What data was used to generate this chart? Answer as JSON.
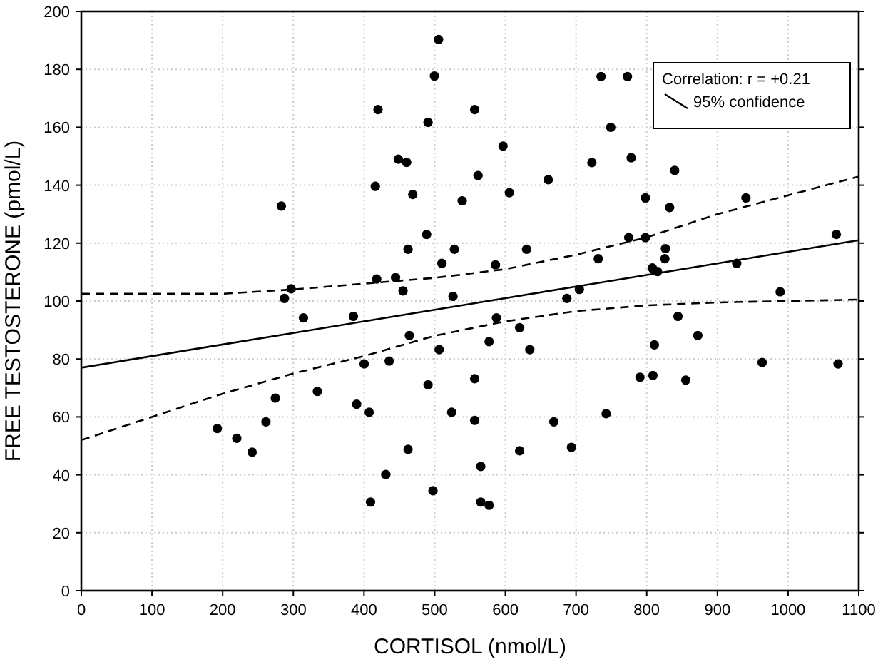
{
  "chart_data": {
    "type": "scatter",
    "xlabel": "CORTISOL (nmol/L)",
    "ylabel": "FREE TESTOSTERONE (pmol/L)",
    "legend_title": "Correlation: r = +0.21",
    "xlim": [
      0,
      1100
    ],
    "ylim": [
      0,
      200
    ],
    "xticks": [
      0,
      100,
      200,
      300,
      400,
      500,
      600,
      700,
      800,
      900,
      1000,
      1100
    ],
    "yticks": [
      0,
      20,
      40,
      60,
      80,
      100,
      120,
      140,
      160,
      180,
      200
    ],
    "grid": true,
    "legend": "top right",
    "marker": "circle",
    "series": [
      {
        "color": "#000000",
        "x": [
          192.5,
          220,
          241.7,
          261.3,
          274.5,
          283,
          287.4,
          297,
          314.3,
          334,
          385,
          389.6,
          400.2,
          407.3,
          409.2,
          416,
          417.9,
          419.8,
          430.8,
          435.6,
          444.6,
          448.5,
          455.2,
          460.3,
          462.3,
          462.3,
          464.2,
          469,
          488.6,
          490.6,
          490.6,
          497.6,
          499.6,
          505.5,
          506.3,
          510.2,
          524,
          525.9,
          527.9,
          538.9,
          556.6,
          556.6,
          556.6,
          561.3,
          565.2,
          565.2,
          577,
          577,
          586,
          587.4,
          596.7,
          605.7,
          620.2,
          620.2,
          630,
          634.6,
          660.7,
          668.6,
          687,
          693.5,
          704.7,
          722.4,
          731.4,
          735.4,
          742.6,
          749.1,
          772.7,
          774.6,
          778,
          790.4,
          798.2,
          798.2,
          808,
          808.8,
          810.8,
          815.3,
          825.7,
          826.5,
          832.4,
          839.5,
          844.2,
          855.2,
          872.3,
          927.3,
          940.4,
          963.3,
          988.8,
          1068.2,
          1070.7
        ],
        "values": [
          56,
          52.6,
          47.8,
          58.3,
          66.5,
          132.8,
          100.9,
          104.2,
          94.2,
          68.8,
          94.7,
          64.4,
          78.3,
          61.6,
          30.6,
          139.6,
          107.6,
          166.1,
          40.1,
          79.3,
          108.1,
          149,
          103.5,
          147.9,
          117.9,
          48.8,
          88.1,
          136.8,
          123,
          161.7,
          71.1,
          34.5,
          177.7,
          190.3,
          83.2,
          113,
          61.6,
          101.6,
          117.9,
          134.6,
          166.1,
          73.2,
          58.8,
          143.3,
          42.9,
          30.6,
          86,
          29.5,
          112.5,
          94.2,
          153.5,
          137.4,
          90.8,
          48.3,
          117.9,
          83.2,
          141.9,
          58.3,
          100.9,
          49.5,
          104,
          147.8,
          114.6,
          177.5,
          61.1,
          160,
          177.5,
          121.9,
          149.5,
          73.7,
          135.6,
          121.9,
          111.4,
          74.3,
          84.9,
          110.2,
          114.6,
          118.1,
          132.3,
          145.1,
          94.7,
          72.7,
          88.1,
          113,
          135.6,
          78.8,
          103.2,
          123,
          78.3
        ]
      },
      {
        "type": "line",
        "name": "95% confidence",
        "color": "#000000",
        "line_style": "solid",
        "marker": "none",
        "x": [
          0,
          100,
          200,
          300,
          400,
          500,
          600,
          700,
          800,
          900,
          1000,
          1100
        ],
        "values": [
          77,
          81,
          85,
          89,
          93,
          97,
          101,
          105,
          109,
          113,
          117,
          121
        ]
      },
      {
        "type": "line",
        "color": "#000000",
        "line_style": "dashed",
        "marker": "none",
        "x": [
          0,
          100,
          200,
          300,
          400,
          500,
          600,
          700,
          800,
          900,
          1000,
          1100
        ],
        "values": [
          52,
          60,
          68,
          75,
          81,
          88,
          93,
          96.5,
          98.5,
          99.5,
          100,
          100.5
        ]
      },
      {
        "type": "line",
        "color": "#000000",
        "line_style": "dashed",
        "marker": "none",
        "x": [
          0,
          100,
          200,
          300,
          400,
          500,
          600,
          700,
          800,
          900,
          1000,
          1100
        ],
        "values": [
          102.5,
          102.5,
          102.5,
          104,
          106,
          108,
          111,
          116,
          122,
          130,
          136.5,
          143
        ]
      }
    ]
  }
}
